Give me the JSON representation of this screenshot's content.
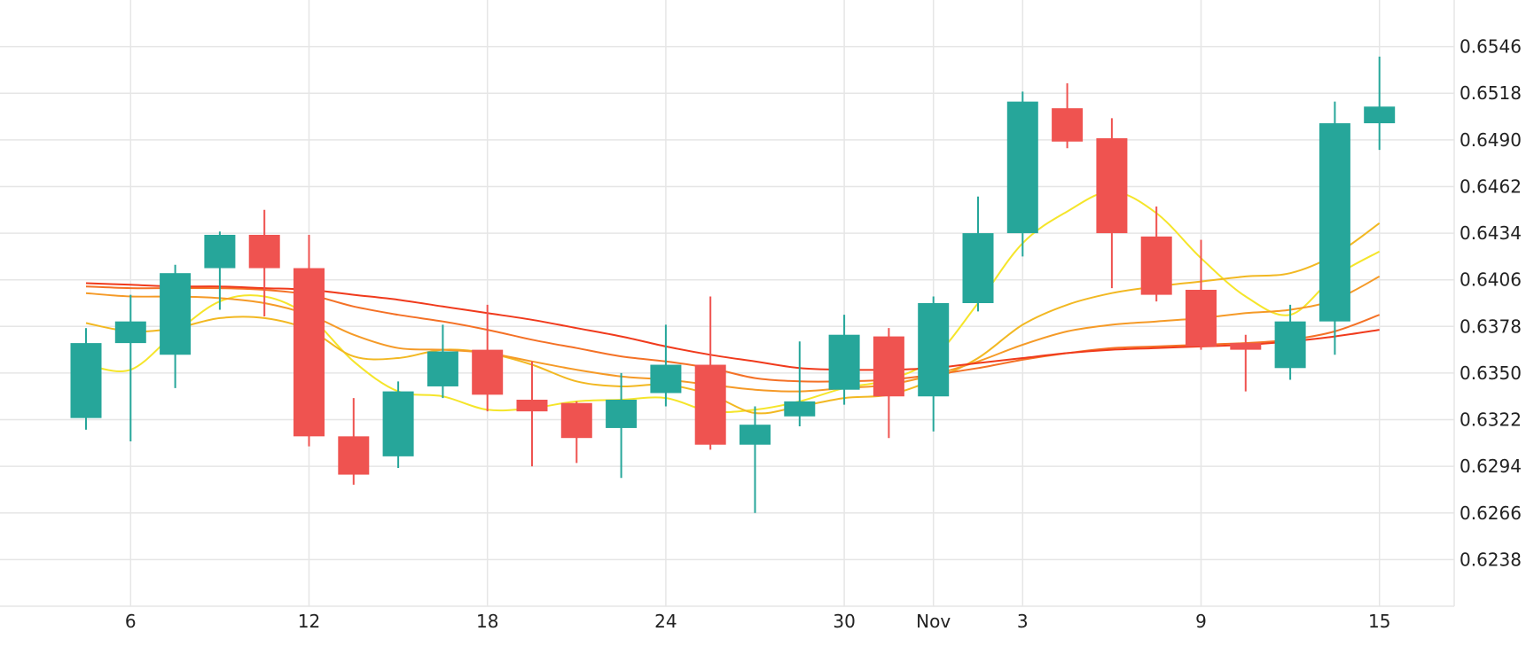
{
  "chart_data": {
    "type": "candlestick",
    "title": "",
    "xlabel": "",
    "ylabel": "",
    "x_ticks": [
      {
        "i": 1,
        "label": "6"
      },
      {
        "i": 5,
        "label": "12"
      },
      {
        "i": 9,
        "label": "18"
      },
      {
        "i": 13,
        "label": "24"
      },
      {
        "i": 17,
        "label": "30"
      },
      {
        "i": 19,
        "label": "Nov"
      },
      {
        "i": 21,
        "label": "3"
      },
      {
        "i": 25,
        "label": "9"
      },
      {
        "i": 29,
        "label": "15"
      }
    ],
    "y_ticks": [
      "0.6546",
      "0.6518",
      "0.6490",
      "0.6462",
      "0.6434",
      "0.6406",
      "0.6378",
      "0.6350",
      "0.6322",
      "0.6294",
      "0.6266",
      "0.6238"
    ],
    "ylim": [
      0.621,
      0.6574
    ],
    "grid": true,
    "up_color": "#26a69a",
    "down_color": "#ef5350",
    "candles": [
      {
        "o": 0.6323,
        "h": 0.6377,
        "l": 0.6316,
        "c": 0.6368
      },
      {
        "o": 0.6368,
        "h": 0.6397,
        "l": 0.6309,
        "c": 0.6381
      },
      {
        "o": 0.6361,
        "h": 0.6415,
        "l": 0.6341,
        "c": 0.641
      },
      {
        "o": 0.6413,
        "h": 0.6435,
        "l": 0.6388,
        "c": 0.6433
      },
      {
        "o": 0.6433,
        "h": 0.6448,
        "l": 0.6384,
        "c": 0.6413
      },
      {
        "o": 0.6413,
        "h": 0.6433,
        "l": 0.6306,
        "c": 0.6312
      },
      {
        "o": 0.6312,
        "h": 0.6335,
        "l": 0.6283,
        "c": 0.6289
      },
      {
        "o": 0.63,
        "h": 0.6345,
        "l": 0.6293,
        "c": 0.6339
      },
      {
        "o": 0.6342,
        "h": 0.6379,
        "l": 0.6335,
        "c": 0.6363
      },
      {
        "o": 0.6364,
        "h": 0.6391,
        "l": 0.6327,
        "c": 0.6337
      },
      {
        "o": 0.6334,
        "h": 0.6357,
        "l": 0.6294,
        "c": 0.6327
      },
      {
        "o": 0.6332,
        "h": 0.6333,
        "l": 0.6296,
        "c": 0.6311
      },
      {
        "o": 0.6317,
        "h": 0.635,
        "l": 0.6287,
        "c": 0.6334
      },
      {
        "o": 0.6338,
        "h": 0.6379,
        "l": 0.633,
        "c": 0.6355
      },
      {
        "o": 0.6355,
        "h": 0.6396,
        "l": 0.6304,
        "c": 0.6307
      },
      {
        "o": 0.6307,
        "h": 0.633,
        "l": 0.6266,
        "c": 0.6319
      },
      {
        "o": 0.6324,
        "h": 0.6369,
        "l": 0.6318,
        "c": 0.6333
      },
      {
        "o": 0.634,
        "h": 0.6385,
        "l": 0.6331,
        "c": 0.6373
      },
      {
        "o": 0.6372,
        "h": 0.6377,
        "l": 0.6311,
        "c": 0.6336
      },
      {
        "o": 0.6336,
        "h": 0.6396,
        "l": 0.6315,
        "c": 0.6392
      },
      {
        "o": 0.6392,
        "h": 0.6456,
        "l": 0.6387,
        "c": 0.6434
      },
      {
        "o": 0.6434,
        "h": 0.6519,
        "l": 0.642,
        "c": 0.6513
      },
      {
        "o": 0.6509,
        "h": 0.6524,
        "l": 0.6485,
        "c": 0.6489
      },
      {
        "o": 0.6491,
        "h": 0.6503,
        "l": 0.6401,
        "c": 0.6434
      },
      {
        "o": 0.6432,
        "h": 0.645,
        "l": 0.6393,
        "c": 0.6397
      },
      {
        "o": 0.64,
        "h": 0.643,
        "l": 0.6364,
        "c": 0.6366
      },
      {
        "o": 0.6368,
        "h": 0.6373,
        "l": 0.6339,
        "c": 0.6364
      },
      {
        "o": 0.6353,
        "h": 0.6391,
        "l": 0.6346,
        "c": 0.6381
      },
      {
        "o": 0.6381,
        "h": 0.6513,
        "l": 0.6361,
        "c": 0.65
      },
      {
        "o": 0.65,
        "h": 0.654,
        "l": 0.6484,
        "c": 0.651
      }
    ],
    "series": [
      {
        "color": "#f5e52a",
        "width": 2,
        "values": [
          0.6355,
          0.6352,
          0.6374,
          0.6393,
          0.6396,
          0.6384,
          0.6357,
          0.6339,
          0.6336,
          0.6328,
          0.6329,
          0.6333,
          0.6334,
          0.6335,
          0.6327,
          0.6328,
          0.6333,
          0.6341,
          0.6346,
          0.6359,
          0.6392,
          0.6428,
          0.6447,
          0.6459,
          0.6446,
          0.6419,
          0.6396,
          0.6385,
          0.6408,
          0.6423
        ]
      },
      {
        "color": "#f2b822",
        "width": 2,
        "values": [
          0.638,
          0.6375,
          0.6377,
          0.6383,
          0.6383,
          0.6376,
          0.636,
          0.6359,
          0.6364,
          0.6362,
          0.6355,
          0.6345,
          0.6342,
          0.6343,
          0.6337,
          0.6326,
          0.633,
          0.6335,
          0.6337,
          0.6346,
          0.6359,
          0.6379,
          0.6391,
          0.6398,
          0.6402,
          0.6405,
          0.6408,
          0.641,
          0.6421,
          0.644
        ]
      },
      {
        "color": "#f59a27",
        "width": 2,
        "values": [
          0.6398,
          0.6396,
          0.6396,
          0.6395,
          0.6392,
          0.6385,
          0.6373,
          0.6365,
          0.6364,
          0.6362,
          0.6357,
          0.6352,
          0.6348,
          0.6346,
          0.6343,
          0.634,
          0.6339,
          0.6341,
          0.6343,
          0.6349,
          0.6357,
          0.6367,
          0.6375,
          0.6379,
          0.6381,
          0.6383,
          0.6386,
          0.6388,
          0.6394,
          0.6408
        ]
      },
      {
        "color": "#f47126",
        "width": 2,
        "values": [
          0.6402,
          0.6401,
          0.6401,
          0.6401,
          0.64,
          0.6397,
          0.639,
          0.6385,
          0.6381,
          0.6376,
          0.637,
          0.6365,
          0.636,
          0.6357,
          0.6353,
          0.6347,
          0.6345,
          0.6345,
          0.6346,
          0.6349,
          0.6353,
          0.6358,
          0.6362,
          0.6365,
          0.6366,
          0.6367,
          0.6368,
          0.637,
          0.6375,
          0.6385
        ]
      },
      {
        "color": "#f03a1c",
        "width": 2,
        "values": [
          0.6404,
          0.6403,
          0.6402,
          0.6402,
          0.6401,
          0.64,
          0.6397,
          0.6394,
          0.639,
          0.6386,
          0.6382,
          0.6377,
          0.6372,
          0.6366,
          0.6361,
          0.6357,
          0.6353,
          0.6352,
          0.6352,
          0.6353,
          0.6356,
          0.6359,
          0.6362,
          0.6364,
          0.6365,
          0.6366,
          0.6367,
          0.6369,
          0.6372,
          0.6376
        ]
      }
    ]
  }
}
